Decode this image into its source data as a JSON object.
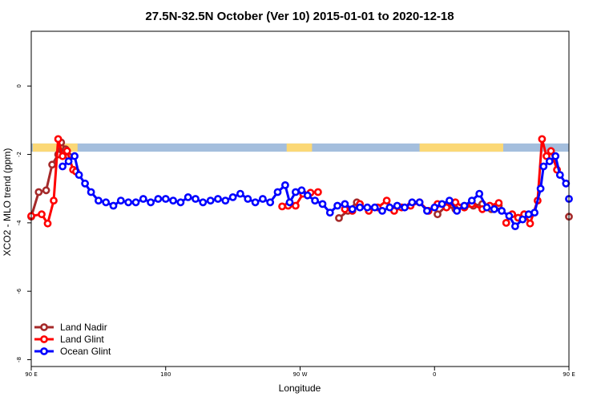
{
  "chart_data": {
    "type": "line",
    "title": "27.5N-32.5N October (Ver 10)   2015-01-01 to 2020-12-18",
    "xlabel": "Longitude",
    "ylabel": "XCO2 - MLO trend (ppm)",
    "xlim": [
      90,
      450
    ],
    "ylim": [
      -8.2,
      1.6
    ],
    "x_ticks": [
      {
        "value": 90,
        "label": "90 E"
      },
      {
        "value": 180,
        "label": "180"
      },
      {
        "value": 270,
        "label": "90 W"
      },
      {
        "value": 360,
        "label": "0"
      },
      {
        "value": 450,
        "label": "90 E"
      },
      {
        "value": 540,
        "label": "180"
      }
    ],
    "y_ticks": [
      {
        "value": 0,
        "label": "0"
      },
      {
        "value": -2,
        "label": "-2"
      },
      {
        "value": -4,
        "label": "-4"
      },
      {
        "value": -6,
        "label": "-6"
      },
      {
        "value": -8,
        "label": "-8"
      }
    ],
    "legend_position": "bottom-left",
    "land_ocean_strip": {
      "y_range": [
        -1.92,
        -1.68
      ],
      "ocean_color": "#a4bedd",
      "land_color": "#fbd876",
      "land_segments": [
        [
          91,
          121
        ],
        [
          261,
          278
        ],
        [
          350,
          406
        ],
        [
          451,
          481
        ]
      ]
    },
    "series": [
      {
        "name": "Land Nadir",
        "color": "#a52a2a",
        "segments": [
          [
            [
              90,
              -3.82
            ],
            [
              95,
              -3.1
            ],
            [
              100,
              -3.05
            ],
            [
              104,
              -2.3
            ],
            [
              108,
              -2.0
            ],
            [
              110,
              -1.65
            ],
            [
              113,
              -1.85
            ],
            [
              115,
              -2.05
            ]
          ],
          [
            [
              296,
              -3.86
            ],
            [
              302,
              -3.65
            ],
            [
              308,
              -3.4
            ]
          ],
          [
            [
              362,
              -3.75
            ],
            [
              368,
              -3.5
            ],
            [
              374,
              -3.6
            ],
            [
              380,
              -3.55
            ],
            [
              386,
              -3.5
            ],
            [
              392,
              -3.45
            ],
            [
              398,
              -3.6
            ],
            [
              403,
              -3.5
            ]
          ],
          [
            [
              450,
              -3.82
            ],
            [
              455,
              -3.1
            ],
            [
              460,
              -3.05
            ],
            [
              464,
              -2.3
            ],
            [
              468,
              -2.0
            ],
            [
              470,
              -1.65
            ],
            [
              473,
              -1.85
            ],
            [
              475,
              -2.05
            ]
          ]
        ]
      },
      {
        "name": "Land Glint",
        "color": "#ff0000",
        "segments": [
          [
            [
              90,
              -3.8
            ],
            [
              97,
              -3.75
            ],
            [
              101,
              -4.02
            ],
            [
              105,
              -3.35
            ],
            [
              108,
              -1.55
            ],
            [
              111,
              -2.05
            ],
            [
              114,
              -1.9
            ],
            [
              118,
              -2.45
            ],
            [
              120,
              -2.5
            ]
          ],
          [
            [
              258,
              -3.52
            ],
            [
              262,
              -3.5
            ],
            [
              267,
              -3.5
            ],
            [
              272,
              -3.15
            ],
            [
              277,
              -3.12
            ],
            [
              282,
              -3.1
            ]
          ],
          [
            [
              300,
              -3.6
            ],
            [
              305,
              -3.65
            ],
            [
              310,
              -3.45
            ],
            [
              316,
              -3.65
            ],
            [
              322,
              -3.55
            ],
            [
              328,
              -3.35
            ],
            [
              333,
              -3.65
            ],
            [
              338,
              -3.55
            ],
            [
              344,
              -3.5
            ],
            [
              350,
              -3.4
            ],
            [
              356,
              -3.65
            ],
            [
              362,
              -3.45
            ],
            [
              368,
              -3.55
            ],
            [
              374,
              -3.4
            ],
            [
              380,
              -3.55
            ],
            [
              385,
              -3.45
            ],
            [
              392,
              -3.6
            ],
            [
              397,
              -3.5
            ],
            [
              403,
              -3.42
            ]
          ],
          [
            [
              408,
              -4.0
            ],
            [
              412,
              -3.75
            ],
            [
              416,
              -3.85
            ],
            [
              420,
              -3.75
            ],
            [
              424,
              -4.02
            ],
            [
              429,
              -3.35
            ],
            [
              432,
              -1.55
            ],
            [
              435,
              -2.05
            ],
            [
              438,
              -1.9
            ],
            [
              442,
              -2.45
            ]
          ]
        ]
      },
      {
        "name": "Ocean Glint",
        "color": "#0000ff",
        "segments": [
          [
            [
              111,
              -2.35
            ],
            [
              115,
              -2.2
            ],
            [
              119,
              -2.05
            ],
            [
              122,
              -2.6
            ],
            [
              126,
              -2.85
            ],
            [
              130,
              -3.1
            ],
            [
              135,
              -3.35
            ],
            [
              140,
              -3.4
            ],
            [
              145,
              -3.5
            ],
            [
              150,
              -3.35
            ],
            [
              155,
              -3.4
            ],
            [
              160,
              -3.4
            ],
            [
              165,
              -3.3
            ],
            [
              170,
              -3.4
            ],
            [
              175,
              -3.3
            ],
            [
              180,
              -3.3
            ],
            [
              185,
              -3.35
            ],
            [
              190,
              -3.4
            ],
            [
              195,
              -3.25
            ],
            [
              200,
              -3.3
            ],
            [
              205,
              -3.4
            ],
            [
              210,
              -3.35
            ],
            [
              215,
              -3.3
            ],
            [
              220,
              -3.35
            ],
            [
              225,
              -3.25
            ],
            [
              230,
              -3.15
            ],
            [
              235,
              -3.3
            ],
            [
              240,
              -3.4
            ],
            [
              245,
              -3.3
            ],
            [
              250,
              -3.4
            ],
            [
              255,
              -3.1
            ],
            [
              260,
              -2.9
            ],
            [
              263,
              -3.4
            ],
            [
              267,
              -3.1
            ],
            [
              271,
              -3.05
            ],
            [
              275,
              -3.2
            ],
            [
              280,
              -3.35
            ],
            [
              285,
              -3.45
            ],
            [
              290,
              -3.7
            ],
            [
              295,
              -3.5
            ],
            [
              300,
              -3.45
            ],
            [
              305,
              -3.6
            ],
            [
              310,
              -3.55
            ],
            [
              315,
              -3.55
            ],
            [
              320,
              -3.55
            ],
            [
              325,
              -3.65
            ],
            [
              330,
              -3.55
            ],
            [
              335,
              -3.5
            ],
            [
              340,
              -3.55
            ],
            [
              345,
              -3.4
            ],
            [
              350,
              -3.4
            ],
            [
              355,
              -3.65
            ],
            [
              360,
              -3.55
            ],
            [
              365,
              -3.45
            ],
            [
              370,
              -3.35
            ],
            [
              375,
              -3.65
            ],
            [
              380,
              -3.5
            ],
            [
              385,
              -3.35
            ],
            [
              390,
              -3.15
            ],
            [
              395,
              -3.55
            ],
            [
              400,
              -3.6
            ],
            [
              405,
              -3.65
            ],
            [
              410,
              -3.8
            ],
            [
              414,
              -4.1
            ],
            [
              419,
              -3.9
            ],
            [
              423,
              -3.75
            ],
            [
              427,
              -3.7
            ],
            [
              431,
              -3.0
            ],
            [
              433,
              -2.35
            ],
            [
              437,
              -2.2
            ],
            [
              441,
              -2.05
            ],
            [
              444,
              -2.6
            ],
            [
              448,
              -2.85
            ]
          ],
          [
            [
              450,
              -3.3
            ]
          ]
        ]
      }
    ]
  }
}
